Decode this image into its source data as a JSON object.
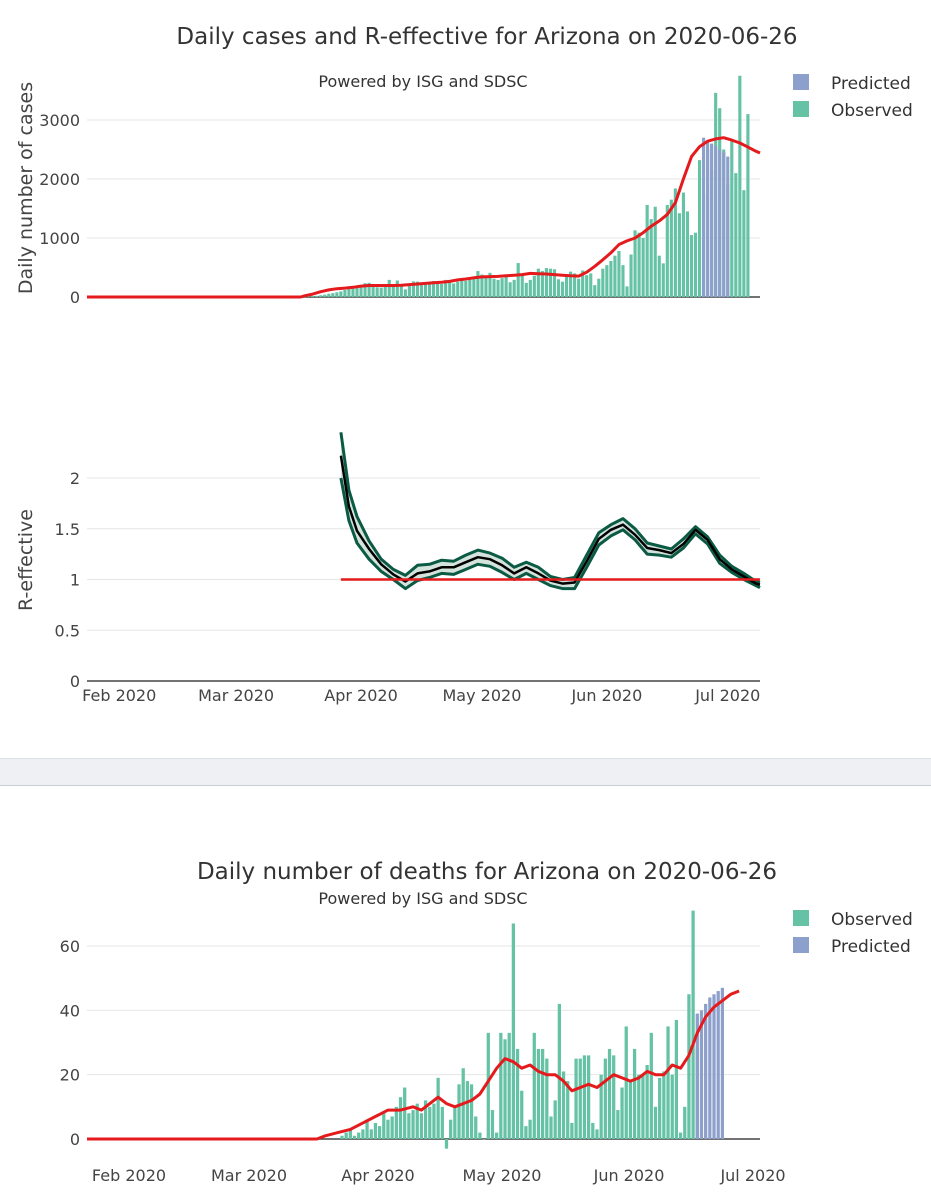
{
  "cases_chart": {
    "title": "Daily cases and R-effective for Arizona on 2020-06-26",
    "subtitle": "Powered by ISG and SDSC",
    "ylabel": "Daily number of cases",
    "legend": [
      {
        "label": "Predicted",
        "color": "#8da0cb"
      },
      {
        "label": "Observed",
        "color": "#66c2a5"
      }
    ]
  },
  "reff_chart": {
    "ylabel": "R-effective"
  },
  "deaths_chart": {
    "title": "Daily number of deaths for Arizona on 2020-06-26",
    "subtitle": "Powered by ISG and SDSC",
    "legend": [
      {
        "label": "Observed",
        "color": "#66c2a5"
      },
      {
        "label": "Predicted",
        "color": "#8da0cb"
      }
    ]
  },
  "chart_data": [
    {
      "type": "bar",
      "name": "daily-cases",
      "title": "Daily cases and R-effective for Arizona on 2020-06-26",
      "ylabel": "Daily number of cases",
      "xlabel": "",
      "x_range_days": [
        0,
        160
      ],
      "x_start_date": "2020-01-24",
      "ylim": [
        0,
        3600
      ],
      "yticks": [
        0,
        1000,
        2000,
        3000
      ],
      "xticks": [
        {
          "label": "Feb 2020",
          "day": 8
        },
        {
          "label": "Mar 2020",
          "day": 37
        },
        {
          "label": "Apr 2020",
          "day": 68
        },
        {
          "label": "May 2020",
          "day": 98
        },
        {
          "label": "Jun 2020",
          "day": 129
        },
        {
          "label": "Jul 2020",
          "day": 159
        }
      ],
      "observed_start_day": 53,
      "observed_values": [
        5,
        5,
        10,
        15,
        20,
        30,
        40,
        55,
        65,
        80,
        95,
        120,
        150,
        160,
        175,
        200,
        235,
        240,
        210,
        165,
        160,
        205,
        290,
        210,
        280,
        220,
        130,
        185,
        265,
        260,
        215,
        210,
        230,
        270,
        230,
        220,
        290,
        250,
        230,
        260,
        290,
        275,
        315,
        340,
        440,
        380,
        330,
        410,
        310,
        290,
        320,
        350,
        250,
        290,
        575,
        370,
        240,
        290,
        360,
        480,
        440,
        490,
        480,
        470,
        300,
        260,
        370,
        430,
        400,
        310,
        450,
        370,
        400,
        200,
        310,
        480,
        540,
        610,
        700,
        780,
        540,
        180,
        720,
        1130,
        1090,
        1000,
        1560,
        1320,
        1530,
        700,
        570,
        1560,
        1650,
        1840,
        1420,
        1770,
        1450,
        1050,
        1090,
        2320,
        1730,
        2510,
        2150,
        3460,
        3200,
        2500,
        1900,
        2640,
        2100,
        3750,
        1810,
        3100
      ],
      "predicted_start_day": 153,
      "predicted_values": [
        2700,
        2650,
        2600,
        2560,
        2500,
        2450,
        2380
      ],
      "trend_points": [
        [
          0,
          0
        ],
        [
          53,
          0
        ],
        [
          54,
          20
        ],
        [
          56,
          50
        ],
        [
          58,
          90
        ],
        [
          60,
          120
        ],
        [
          62,
          140
        ],
        [
          64,
          150
        ],
        [
          66,
          165
        ],
        [
          68,
          185
        ],
        [
          70,
          195
        ],
        [
          72,
          195
        ],
        [
          74,
          195
        ],
        [
          76,
          195
        ],
        [
          78,
          200
        ],
        [
          80,
          210
        ],
        [
          82,
          220
        ],
        [
          84,
          230
        ],
        [
          86,
          240
        ],
        [
          88,
          250
        ],
        [
          90,
          265
        ],
        [
          92,
          290
        ],
        [
          94,
          305
        ],
        [
          96,
          325
        ],
        [
          98,
          340
        ],
        [
          100,
          345
        ],
        [
          102,
          350
        ],
        [
          104,
          360
        ],
        [
          106,
          370
        ],
        [
          108,
          380
        ],
        [
          110,
          400
        ],
        [
          112,
          395
        ],
        [
          114,
          390
        ],
        [
          116,
          380
        ],
        [
          118,
          370
        ],
        [
          120,
          360
        ],
        [
          122,
          355
        ],
        [
          124,
          420
        ],
        [
          126,
          520
        ],
        [
          128,
          630
        ],
        [
          130,
          750
        ],
        [
          132,
          890
        ],
        [
          134,
          950
        ],
        [
          136,
          1000
        ],
        [
          138,
          1090
        ],
        [
          140,
          1200
        ],
        [
          142,
          1290
        ],
        [
          144,
          1400
        ],
        [
          146,
          1600
        ],
        [
          148,
          2000
        ],
        [
          150,
          2380
        ],
        [
          152,
          2550
        ],
        [
          154,
          2640
        ],
        [
          156,
          2680
        ],
        [
          158,
          2700
        ],
        [
          160,
          2660
        ],
        [
          162,
          2610
        ],
        [
          164,
          2540
        ],
        [
          166,
          2470
        ],
        [
          167,
          2440
        ]
      ]
    },
    {
      "type": "line",
      "name": "r-effective",
      "ylabel": "R-effective",
      "ylim": [
        0,
        2.5
      ],
      "yticks": [
        0,
        0.5,
        1,
        1.5,
        2
      ],
      "ytick_labels": [
        "0",
        "0.5",
        "1",
        "1.5",
        "2"
      ],
      "reference_line": 1,
      "series": [
        {
          "name": "R-effective",
          "points": [
            [
              63,
              2.22
            ],
            [
              65,
              1.72
            ],
            [
              67,
              1.48
            ],
            [
              70,
              1.3
            ],
            [
              73,
              1.15
            ],
            [
              76,
              1.05
            ],
            [
              79,
              0.98
            ],
            [
              82,
              1.06
            ],
            [
              85,
              1.08
            ],
            [
              88,
              1.12
            ],
            [
              91,
              1.12
            ],
            [
              94,
              1.17
            ],
            [
              97,
              1.22
            ],
            [
              100,
              1.2
            ],
            [
              103,
              1.14
            ],
            [
              106,
              1.06
            ],
            [
              109,
              1.12
            ],
            [
              112,
              1.06
            ],
            [
              115,
              0.99
            ],
            [
              118,
              0.96
            ],
            [
              121,
              0.97
            ],
            [
              124,
              1.18
            ],
            [
              127,
              1.4
            ],
            [
              130,
              1.49
            ],
            [
              133,
              1.54
            ],
            [
              136,
              1.44
            ],
            [
              139,
              1.31
            ],
            [
              142,
              1.29
            ],
            [
              145,
              1.26
            ],
            [
              148,
              1.35
            ],
            [
              151,
              1.49
            ],
            [
              154,
              1.39
            ],
            [
              157,
              1.2
            ],
            [
              160,
              1.1
            ],
            [
              163,
              1.03
            ],
            [
              166,
              0.96
            ],
            [
              167,
              0.95
            ]
          ]
        },
        {
          "name": "upper bound",
          "points": [
            [
              63,
              2.45
            ],
            [
              65,
              1.88
            ],
            [
              67,
              1.62
            ],
            [
              70,
              1.38
            ],
            [
              73,
              1.2
            ],
            [
              76,
              1.1
            ],
            [
              79,
              1.04
            ],
            [
              82,
              1.14
            ],
            [
              85,
              1.15
            ],
            [
              88,
              1.19
            ],
            [
              91,
              1.18
            ],
            [
              94,
              1.24
            ],
            [
              97,
              1.29
            ],
            [
              100,
              1.26
            ],
            [
              103,
              1.21
            ],
            [
              106,
              1.12
            ],
            [
              109,
              1.17
            ],
            [
              112,
              1.12
            ],
            [
              115,
              1.03
            ],
            [
              118,
              1.0
            ],
            [
              121,
              1.02
            ],
            [
              124,
              1.24
            ],
            [
              127,
              1.46
            ],
            [
              130,
              1.54
            ],
            [
              133,
              1.6
            ],
            [
              136,
              1.5
            ],
            [
              139,
              1.36
            ],
            [
              142,
              1.33
            ],
            [
              145,
              1.3
            ],
            [
              148,
              1.4
            ],
            [
              151,
              1.52
            ],
            [
              154,
              1.42
            ],
            [
              157,
              1.24
            ],
            [
              160,
              1.13
            ],
            [
              163,
              1.06
            ],
            [
              166,
              0.98
            ],
            [
              167,
              0.97
            ]
          ]
        },
        {
          "name": "lower bound",
          "points": [
            [
              63,
              2.0
            ],
            [
              65,
              1.58
            ],
            [
              67,
              1.36
            ],
            [
              70,
              1.2
            ],
            [
              73,
              1.08
            ],
            [
              76,
              1.0
            ],
            [
              79,
              0.91
            ],
            [
              82,
              0.99
            ],
            [
              85,
              1.02
            ],
            [
              88,
              1.06
            ],
            [
              91,
              1.05
            ],
            [
              94,
              1.1
            ],
            [
              97,
              1.15
            ],
            [
              100,
              1.13
            ],
            [
              103,
              1.07
            ],
            [
              106,
              1.0
            ],
            [
              109,
              1.06
            ],
            [
              112,
              1.0
            ],
            [
              115,
              0.94
            ],
            [
              118,
              0.91
            ],
            [
              121,
              0.91
            ],
            [
              124,
              1.12
            ],
            [
              127,
              1.34
            ],
            [
              130,
              1.43
            ],
            [
              133,
              1.49
            ],
            [
              136,
              1.39
            ],
            [
              139,
              1.25
            ],
            [
              142,
              1.24
            ],
            [
              145,
              1.22
            ],
            [
              148,
              1.31
            ],
            [
              151,
              1.45
            ],
            [
              154,
              1.35
            ],
            [
              157,
              1.16
            ],
            [
              160,
              1.07
            ],
            [
              163,
              1.0
            ],
            [
              166,
              0.94
            ],
            [
              167,
              0.92
            ]
          ]
        }
      ]
    },
    {
      "type": "bar",
      "name": "daily-deaths",
      "title": "Daily number of deaths for Arizona on 2020-06-26",
      "xlabel": "",
      "ylabel": "",
      "ylim": [
        -4,
        72
      ],
      "yticks": [
        0,
        20,
        40,
        60
      ],
      "xticks": [
        {
          "label": "Feb 2020",
          "day": 8
        },
        {
          "label": "Mar 2020",
          "day": 37
        },
        {
          "label": "Apr 2020",
          "day": 68
        },
        {
          "label": "May 2020",
          "day": 98
        },
        {
          "label": "Jun 2020",
          "day": 129
        },
        {
          "label": "Jul 2020",
          "day": 159
        }
      ],
      "observed_start_day": 61,
      "observed_values": [
        1,
        2,
        3,
        1,
        2,
        3,
        6,
        3,
        5,
        4,
        8,
        6,
        7,
        10,
        13,
        16,
        8,
        9,
        11,
        8,
        12,
        10,
        11,
        19,
        10,
        -3,
        6,
        10,
        17,
        22,
        18,
        17,
        7,
        2,
        0,
        33,
        9,
        2,
        33,
        31,
        33,
        67,
        28,
        15,
        4,
        6,
        33,
        28,
        28,
        25,
        7,
        12,
        42,
        21,
        18,
        5,
        25,
        25,
        26,
        26,
        5,
        3,
        20,
        25,
        28,
        26,
        9,
        16,
        35,
        18,
        28,
        20,
        20,
        23,
        33,
        10,
        19,
        21,
        35,
        20,
        37,
        2,
        10,
        45,
        71,
        28
      ],
      "predicted_start_day": 146,
      "predicted_values": [
        39,
        40,
        42,
        44,
        45,
        46,
        47
      ],
      "trend_points": [
        [
          0,
          0
        ],
        [
          55,
          0
        ],
        [
          57,
          1
        ],
        [
          60,
          2
        ],
        [
          63,
          3
        ],
        [
          66,
          5
        ],
        [
          69,
          7
        ],
        [
          72,
          9
        ],
        [
          75,
          9
        ],
        [
          78,
          10
        ],
        [
          80,
          9
        ],
        [
          82,
          11
        ],
        [
          84,
          13
        ],
        [
          86,
          11
        ],
        [
          88,
          10
        ],
        [
          90,
          11
        ],
        [
          92,
          12
        ],
        [
          94,
          14
        ],
        [
          96,
          18
        ],
        [
          98,
          22
        ],
        [
          100,
          25
        ],
        [
          102,
          24
        ],
        [
          104,
          22
        ],
        [
          106,
          23
        ],
        [
          108,
          21
        ],
        [
          110,
          20
        ],
        [
          112,
          20
        ],
        [
          114,
          18
        ],
        [
          116,
          15
        ],
        [
          118,
          16
        ],
        [
          120,
          17
        ],
        [
          122,
          16
        ],
        [
          124,
          18
        ],
        [
          126,
          20
        ],
        [
          128,
          19
        ],
        [
          130,
          18
        ],
        [
          132,
          19
        ],
        [
          134,
          21
        ],
        [
          136,
          20
        ],
        [
          138,
          20
        ],
        [
          140,
          23
        ],
        [
          142,
          22
        ],
        [
          144,
          26
        ],
        [
          146,
          33
        ],
        [
          148,
          38
        ],
        [
          150,
          41
        ],
        [
          152,
          43
        ],
        [
          154,
          45
        ],
        [
          156,
          46
        ]
      ]
    }
  ]
}
